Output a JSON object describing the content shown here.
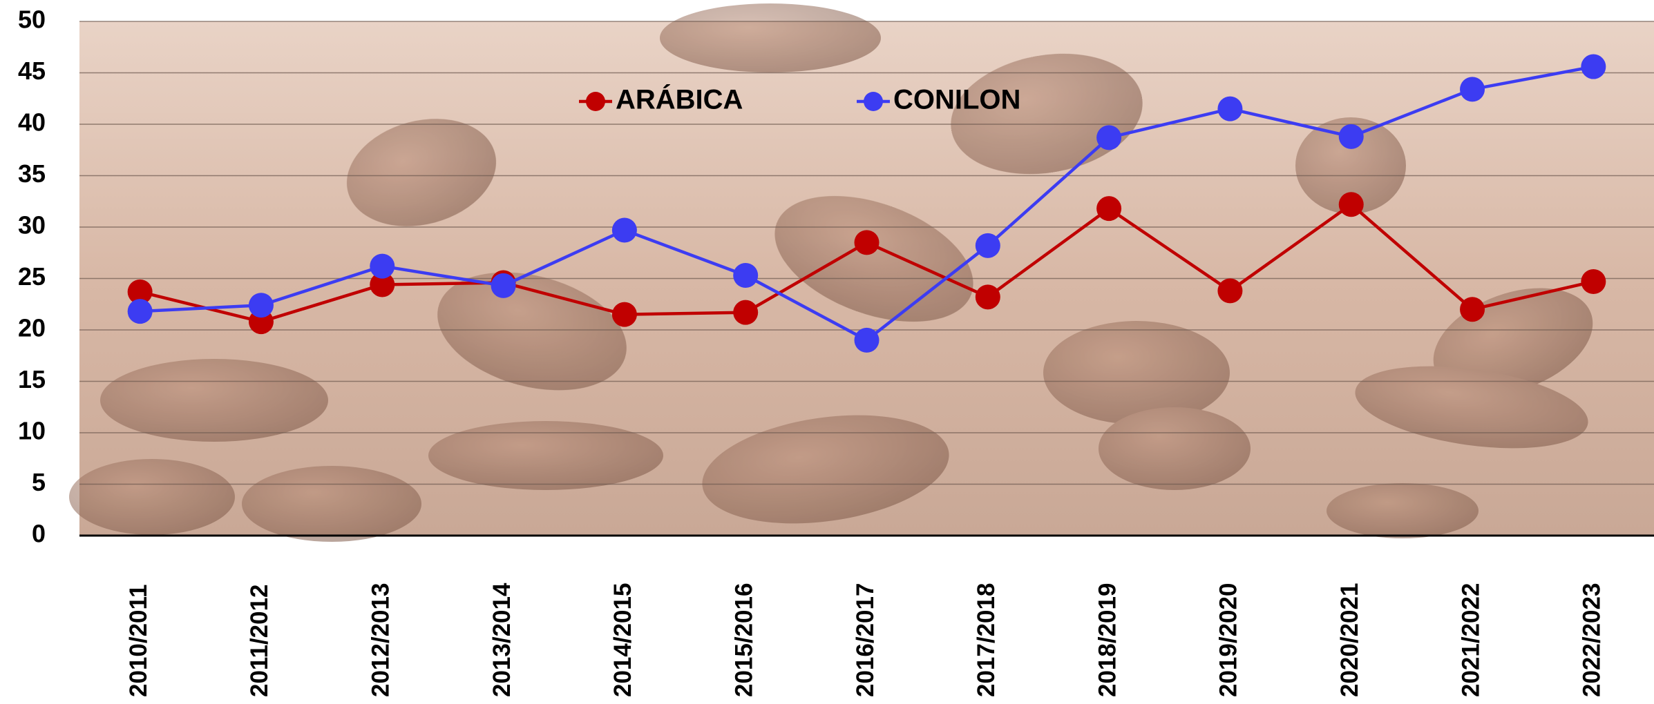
{
  "chart_data": {
    "type": "line",
    "categories": [
      "2010/2011",
      "2011/2012",
      "2012/2013",
      "2013/2014",
      "2014/2015",
      "2015/2016",
      "2016/2017",
      "2017/2018",
      "2018/2019",
      "2019/2020",
      "2020/2021",
      "2021/2022",
      "2022/2023"
    ],
    "series": [
      {
        "name": "ARÁBICA",
        "color": "#c00000",
        "values": [
          23.7,
          20.8,
          24.4,
          24.6,
          21.5,
          21.7,
          28.5,
          23.2,
          31.8,
          23.8,
          32.2,
          22.0,
          24.7
        ]
      },
      {
        "name": "CONILON",
        "color": "#3c3cf2",
        "values": [
          21.8,
          22.4,
          26.2,
          24.3,
          29.7,
          25.3,
          19.0,
          28.2,
          38.7,
          41.5,
          38.8,
          43.4,
          45.6
        ]
      }
    ],
    "ylim": [
      0,
      50
    ],
    "yticks": [
      0,
      5,
      10,
      15,
      20,
      25,
      30,
      35,
      40,
      45,
      50
    ],
    "grid": true,
    "legend": "top"
  }
}
